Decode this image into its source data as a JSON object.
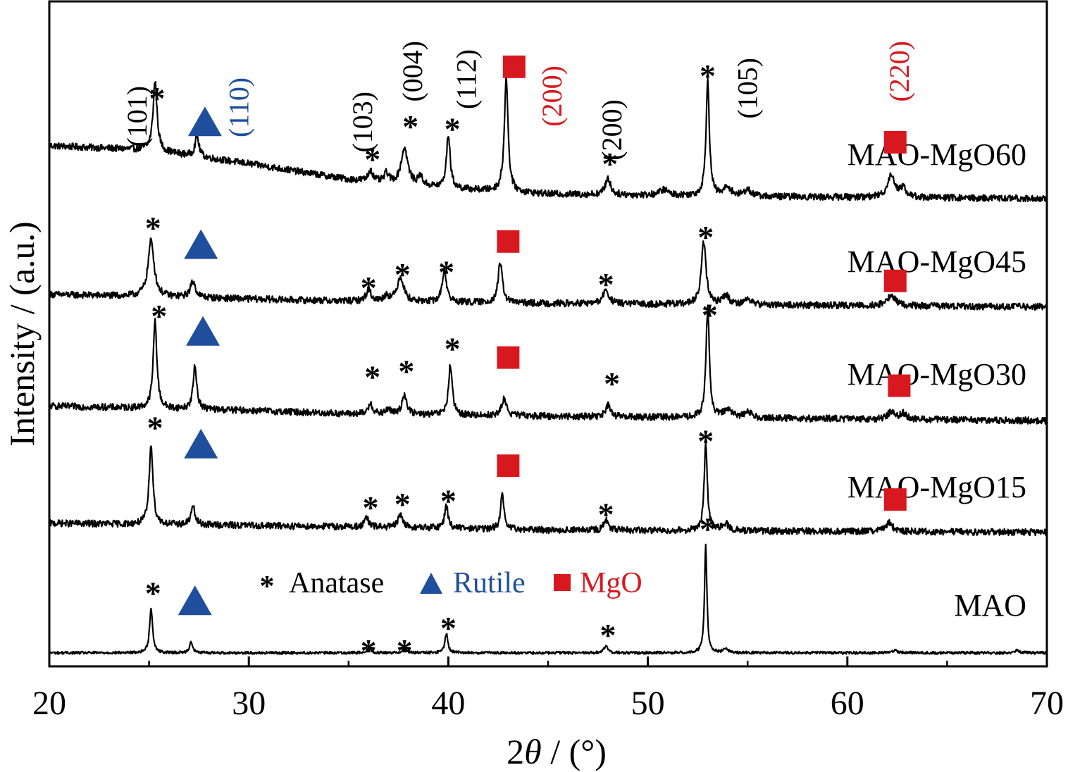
{
  "chart_data": {
    "type": "line",
    "xlabel_prefix": "2",
    "xlabel_symbol": "θ",
    "xlabel_suffix": " / (°)",
    "ylabel": "Intensity / (a.u.)",
    "xlim": [
      20,
      70
    ],
    "x_ticks": [
      20,
      30,
      40,
      50,
      60,
      70
    ],
    "y_ticks_shown": false,
    "grid": false,
    "colors": {
      "anatase": "#000000",
      "rutile": "#1f4e9c",
      "mgo": "#d7191f",
      "axis": "#000000"
    },
    "legend": {
      "placement": "bottom-center",
      "items": [
        {
          "marker": "asterisk",
          "label": "Anatase",
          "color": "#000000"
        },
        {
          "marker": "triangle",
          "label": "Rutile",
          "color": "#1f4e9c"
        },
        {
          "marker": "square",
          "label": "MgO",
          "color": "#d7191f"
        }
      ]
    },
    "series": [
      {
        "name": "MAO-MgO60",
        "offset": 4.0,
        "baseline": [
          [
            20,
            0.52
          ],
          [
            25,
            0.48
          ],
          [
            30,
            0.36
          ],
          [
            35,
            0.22
          ],
          [
            40,
            0.14
          ],
          [
            45,
            0.09
          ],
          [
            55,
            0.07
          ],
          [
            70,
            0.05
          ]
        ],
        "peaks": [
          {
            "x": 25.3,
            "h": 0.62,
            "w": 0.12
          },
          {
            "x": 27.4,
            "h": 0.18,
            "w": 0.12
          },
          {
            "x": 36.1,
            "h": 0.1,
            "w": 0.13
          },
          {
            "x": 36.9,
            "h": 0.08,
            "w": 0.13
          },
          {
            "x": 37.8,
            "h": 0.32,
            "w": 0.2
          },
          {
            "x": 38.6,
            "h": 0.08,
            "w": 0.13
          },
          {
            "x": 40.0,
            "h": 0.48,
            "w": 0.11
          },
          {
            "x": 42.9,
            "h": 1.02,
            "w": 0.11
          },
          {
            "x": 48.0,
            "h": 0.15,
            "w": 0.15
          },
          {
            "x": 50.8,
            "h": 0.05,
            "w": 0.25
          },
          {
            "x": 53.0,
            "h": 1.02,
            "w": 0.1
          },
          {
            "x": 54.0,
            "h": 0.08,
            "w": 0.2
          },
          {
            "x": 55.0,
            "h": 0.06,
            "w": 0.2
          },
          {
            "x": 62.2,
            "h": 0.2,
            "w": 0.22
          },
          {
            "x": 62.8,
            "h": 0.08,
            "w": 0.18
          }
        ]
      },
      {
        "name": "MAO-MgO45",
        "offset": 3.05,
        "baseline": [
          [
            20,
            0.15
          ],
          [
            25,
            0.13
          ],
          [
            30,
            0.11
          ],
          [
            35,
            0.09
          ],
          [
            45,
            0.07
          ],
          [
            70,
            0.04
          ]
        ],
        "peaks": [
          {
            "x": 25.1,
            "h": 0.5,
            "w": 0.18
          },
          {
            "x": 27.2,
            "h": 0.14,
            "w": 0.16
          },
          {
            "x": 36.0,
            "h": 0.1,
            "w": 0.15
          },
          {
            "x": 36.9,
            "h": 0.05,
            "w": 0.15
          },
          {
            "x": 37.6,
            "h": 0.22,
            "w": 0.2
          },
          {
            "x": 39.8,
            "h": 0.28,
            "w": 0.13
          },
          {
            "x": 42.6,
            "h": 0.35,
            "w": 0.13
          },
          {
            "x": 47.9,
            "h": 0.12,
            "w": 0.18
          },
          {
            "x": 52.8,
            "h": 0.55,
            "w": 0.14
          },
          {
            "x": 53.9,
            "h": 0.08,
            "w": 0.2
          },
          {
            "x": 55.0,
            "h": 0.05,
            "w": 0.2
          },
          {
            "x": 62.2,
            "h": 0.09,
            "w": 0.25
          }
        ]
      },
      {
        "name": "MAO-MgO30",
        "offset": 2.05,
        "baseline": [
          [
            20,
            0.16
          ],
          [
            25,
            0.14
          ],
          [
            30,
            0.12
          ],
          [
            35,
            0.09
          ],
          [
            45,
            0.07
          ],
          [
            70,
            0.03
          ]
        ],
        "peaks": [
          {
            "x": 25.3,
            "h": 0.78,
            "w": 0.11
          },
          {
            "x": 27.3,
            "h": 0.38,
            "w": 0.11
          },
          {
            "x": 36.1,
            "h": 0.1,
            "w": 0.12
          },
          {
            "x": 37.0,
            "h": 0.05,
            "w": 0.12
          },
          {
            "x": 37.8,
            "h": 0.18,
            "w": 0.14
          },
          {
            "x": 40.1,
            "h": 0.44,
            "w": 0.11
          },
          {
            "x": 42.8,
            "h": 0.15,
            "w": 0.14
          },
          {
            "x": 48.0,
            "h": 0.1,
            "w": 0.14
          },
          {
            "x": 53.0,
            "h": 0.97,
            "w": 0.1
          },
          {
            "x": 54.0,
            "h": 0.08,
            "w": 0.2
          },
          {
            "x": 55.0,
            "h": 0.06,
            "w": 0.2
          },
          {
            "x": 62.2,
            "h": 0.07,
            "w": 0.2
          },
          {
            "x": 62.8,
            "h": 0.05,
            "w": 0.18
          }
        ]
      },
      {
        "name": "MAO-MgO15",
        "offset": 1.05,
        "baseline": [
          [
            20,
            0.12
          ],
          [
            25,
            0.11
          ],
          [
            30,
            0.1
          ],
          [
            35,
            0.09
          ],
          [
            45,
            0.06
          ],
          [
            70,
            0.04
          ]
        ],
        "peaks": [
          {
            "x": 25.1,
            "h": 0.72,
            "w": 0.11
          },
          {
            "x": 27.2,
            "h": 0.16,
            "w": 0.12
          },
          {
            "x": 35.9,
            "h": 0.08,
            "w": 0.12
          },
          {
            "x": 37.6,
            "h": 0.12,
            "w": 0.13
          },
          {
            "x": 39.9,
            "h": 0.2,
            "w": 0.11
          },
          {
            "x": 42.7,
            "h": 0.3,
            "w": 0.1
          },
          {
            "x": 47.9,
            "h": 0.09,
            "w": 0.13
          },
          {
            "x": 52.9,
            "h": 0.79,
            "w": 0.09
          },
          {
            "x": 53.9,
            "h": 0.06,
            "w": 0.2
          },
          {
            "x": 62.1,
            "h": 0.08,
            "w": 0.2
          }
        ]
      },
      {
        "name": "MAO",
        "offset": 0.0,
        "baseline": [
          [
            20,
            0.02
          ],
          [
            70,
            0.02
          ]
        ],
        "peaks": [
          {
            "x": 25.1,
            "h": 0.4,
            "w": 0.09
          },
          {
            "x": 27.1,
            "h": 0.1,
            "w": 0.09
          },
          {
            "x": 36.0,
            "h": 0.04,
            "w": 0.12
          },
          {
            "x": 37.8,
            "h": 0.04,
            "w": 0.12
          },
          {
            "x": 39.9,
            "h": 0.17,
            "w": 0.09
          },
          {
            "x": 47.9,
            "h": 0.07,
            "w": 0.1
          },
          {
            "x": 52.9,
            "h": 0.97,
            "w": 0.07
          },
          {
            "x": 53.9,
            "h": 0.03,
            "w": 0.15
          },
          {
            "x": 62.4,
            "h": 0.02,
            "w": 0.15
          },
          {
            "x": 68.5,
            "h": 0.02,
            "w": 0.15
          }
        ]
      }
    ],
    "phase_markers": [
      {
        "phase": "anatase",
        "x": 25.4,
        "y": 4.98
      },
      {
        "phase": "rutile",
        "x": 27.8,
        "y": 4.73
      },
      {
        "phase": "anatase",
        "x": 36.2,
        "y": 4.44
      },
      {
        "phase": "anatase",
        "x": 38.1,
        "y": 4.73
      },
      {
        "phase": "anatase",
        "x": 40.2,
        "y": 4.71
      },
      {
        "phase": "mgo",
        "x": 43.3,
        "y": 5.22
      },
      {
        "phase": "anatase",
        "x": 48.1,
        "y": 4.4
      },
      {
        "phase": "anatase",
        "x": 53.0,
        "y": 5.18
      },
      {
        "phase": "mgo",
        "x": 62.4,
        "y": 4.55
      },
      {
        "phase": "anatase",
        "x": 25.2,
        "y": 3.83
      },
      {
        "phase": "rutile",
        "x": 27.6,
        "y": 3.64
      },
      {
        "phase": "anatase",
        "x": 36.0,
        "y": 3.3
      },
      {
        "phase": "anatase",
        "x": 37.7,
        "y": 3.42
      },
      {
        "phase": "anatase",
        "x": 39.9,
        "y": 3.44
      },
      {
        "phase": "mgo",
        "x": 43.0,
        "y": 3.67
      },
      {
        "phase": "anatase",
        "x": 47.9,
        "y": 3.33
      },
      {
        "phase": "anatase",
        "x": 52.9,
        "y": 3.75
      },
      {
        "phase": "mgo",
        "x": 62.4,
        "y": 3.32
      },
      {
        "phase": "anatase",
        "x": 25.5,
        "y": 3.05
      },
      {
        "phase": "rutile",
        "x": 27.7,
        "y": 2.87
      },
      {
        "phase": "anatase",
        "x": 36.2,
        "y": 2.51
      },
      {
        "phase": "anatase",
        "x": 37.9,
        "y": 2.56
      },
      {
        "phase": "anatase",
        "x": 40.2,
        "y": 2.76
      },
      {
        "phase": "mgo",
        "x": 43.0,
        "y": 2.64
      },
      {
        "phase": "anatase",
        "x": 48.2,
        "y": 2.45
      },
      {
        "phase": "anatase",
        "x": 53.1,
        "y": 3.06
      },
      {
        "phase": "mgo",
        "x": 62.6,
        "y": 2.39
      },
      {
        "phase": "anatase",
        "x": 25.3,
        "y": 2.06
      },
      {
        "phase": "rutile",
        "x": 27.6,
        "y": 1.87
      },
      {
        "phase": "anatase",
        "x": 36.1,
        "y": 1.35
      },
      {
        "phase": "anatase",
        "x": 37.7,
        "y": 1.38
      },
      {
        "phase": "anatase",
        "x": 40.0,
        "y": 1.41
      },
      {
        "phase": "mgo",
        "x": 43.0,
        "y": 1.68
      },
      {
        "phase": "anatase",
        "x": 47.9,
        "y": 1.29
      },
      {
        "phase": "anatase",
        "x": 52.9,
        "y": 1.94
      },
      {
        "phase": "mgo",
        "x": 62.4,
        "y": 1.38
      },
      {
        "phase": "anatase",
        "x": 25.2,
        "y": 0.59
      },
      {
        "phase": "rutile",
        "x": 27.3,
        "y": 0.48
      },
      {
        "phase": "anatase",
        "x": 36.0,
        "y": 0.08
      },
      {
        "phase": "anatase",
        "x": 37.8,
        "y": 0.08
      },
      {
        "phase": "anatase",
        "x": 40.0,
        "y": 0.28
      },
      {
        "phase": "anatase",
        "x": 48.0,
        "y": 0.22
      },
      {
        "phase": "anatase",
        "x": 53.0,
        "y": 1.16
      }
    ],
    "hkl_labels": [
      {
        "text": "(101)",
        "x": 24.4,
        "y": 4.78,
        "color": "#000000"
      },
      {
        "text": "(110)",
        "x": 29.5,
        "y": 4.86,
        "color": "#1f4e9c"
      },
      {
        "text": "(103)",
        "x": 35.7,
        "y": 4.73,
        "color": "#000000"
      },
      {
        "text": "(004)",
        "x": 38.2,
        "y": 5.18,
        "color": "#000000"
      },
      {
        "text": "(112)",
        "x": 40.9,
        "y": 5.11,
        "color": "#000000"
      },
      {
        "text": "(200)",
        "x": 45.2,
        "y": 4.96,
        "color": "#d7191f"
      },
      {
        "text": "(200)",
        "x": 48.2,
        "y": 4.66,
        "color": "#000000"
      },
      {
        "text": "(105)",
        "x": 55.0,
        "y": 5.03,
        "color": "#000000"
      },
      {
        "text": "(220)",
        "x": 62.6,
        "y": 5.18,
        "color": "#d7191f"
      }
    ]
  }
}
